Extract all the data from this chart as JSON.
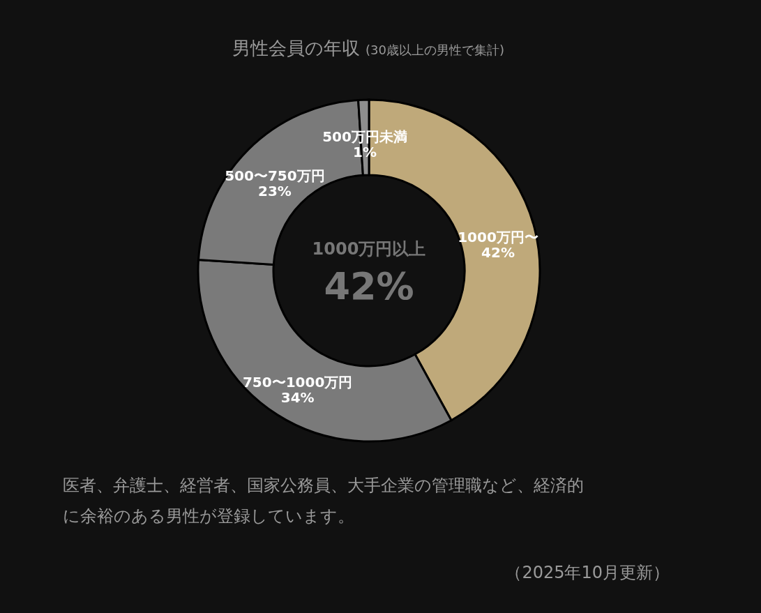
{
  "chart_data": {
    "type": "donut",
    "title": "男性会員の年収",
    "subtitle": "(30歳以上の男性で集計)",
    "categories": [
      "1000万円〜",
      "750〜1000万円",
      "500〜750万円",
      "500万円未満"
    ],
    "values": [
      42,
      34,
      23,
      1
    ],
    "value_labels": [
      "42%",
      "34%",
      "23%",
      "1%"
    ],
    "colors": [
      "#bfa97a",
      "#7a7a7a",
      "#7a7a7a",
      "#8e8e8e"
    ],
    "annotations": [
      "1000万円以上",
      "42%",
      "医者、弁護士、経営者、国家公務員、大手企業の管理職など、経済的に余裕のある男性が登録しています。",
      "（2025年10月更新）"
    ]
  }
}
